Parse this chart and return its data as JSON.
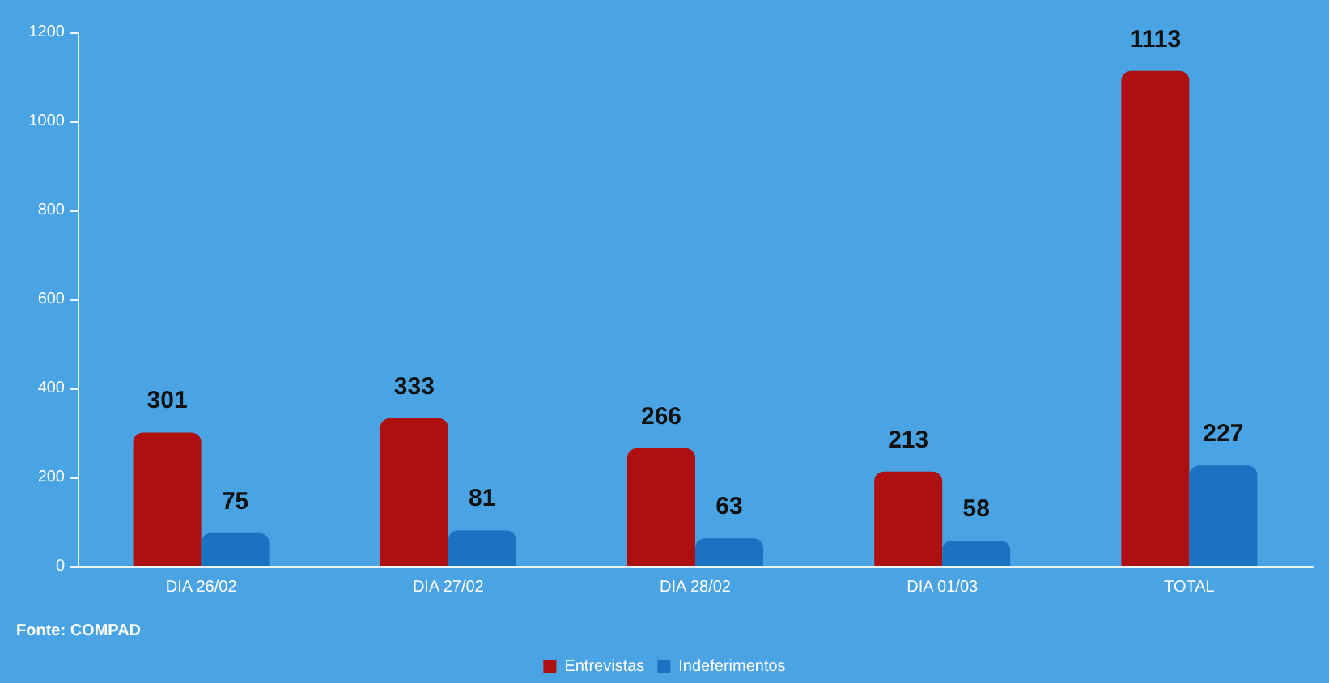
{
  "chart_data": {
    "type": "bar",
    "categories": [
      "DIA 26/02",
      "DIA 27/02",
      "DIA 28/02",
      "DIA 01/03",
      "TOTAL"
    ],
    "series": [
      {
        "name": "Entrevistas",
        "color": "#b00f0f",
        "values": [
          301,
          333,
          266,
          213,
          1113
        ]
      },
      {
        "name": "Indeferimentos",
        "color": "#1a73c2",
        "values": [
          75,
          81,
          63,
          58,
          227
        ]
      }
    ],
    "ylim": [
      0,
      1200
    ],
    "yticks": [
      0,
      200,
      400,
      600,
      800,
      1000,
      1200
    ],
    "data_labels": true,
    "grid": false,
    "legend": "bottom",
    "annotations": [
      "Fonte: COMPAD"
    ]
  }
}
